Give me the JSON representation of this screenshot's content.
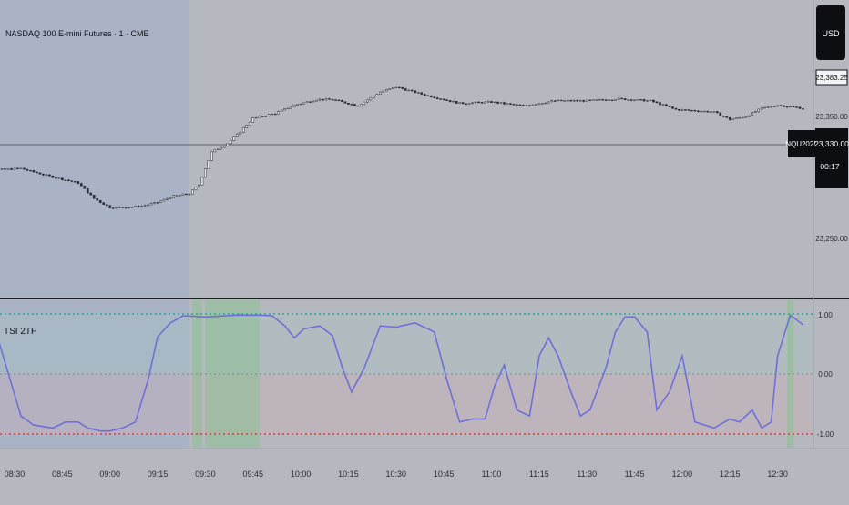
{
  "symbol_title": "NASDAQ 100 E-mini Futures · 1 · CME",
  "currency_label": "USD",
  "colors": {
    "background": "#b5b8bf",
    "session_shade": "#a9b2c6",
    "candle": "#2a2d35",
    "tsi_line": "#6f6fd8",
    "overbought_line": "#26a69a",
    "oversold_line": "#e53935",
    "zero_line": "#8a8f99",
    "signal_zone": "#8fbf96",
    "label_bg": "#0d0e12"
  },
  "price_pane": {
    "axis_ticks": [
      "23,350.00",
      "23,250.00"
    ],
    "current_price_label": "23,383.25",
    "contract_label": "NQU2025",
    "last_price_label": "23,330.00",
    "countdown_label": "00:17"
  },
  "indicator_pane": {
    "title": "TSI 2TF",
    "axis_ticks": [
      "1.00",
      "0.00",
      "-1.00"
    ]
  },
  "chart_data": [
    {
      "type": "candlestick",
      "title": "NASDAQ 100 E-mini Futures · 1 · CME",
      "ylim": [
        23200,
        23440
      ],
      "x_ticks": [
        "08:30",
        "08:45",
        "09:00",
        "09:15",
        "09:30",
        "09:45",
        "10:00",
        "10:15",
        "10:30",
        "10:45",
        "11:00",
        "11:15",
        "11:30",
        "11:45",
        "12:00",
        "12:15",
        "12:30"
      ],
      "y_ticks": [
        23250,
        23350
      ],
      "horizontal_level": 23330,
      "last_price": 23383.25,
      "close_path": {
        "times": [
          "08:15",
          "08:25",
          "08:32",
          "08:40",
          "08:50",
          "08:55",
          "09:00",
          "09:05",
          "09:10",
          "09:15",
          "09:20",
          "09:25",
          "09:28",
          "09:32",
          "09:37",
          "09:40",
          "09:45",
          "09:52",
          "09:58",
          "10:05",
          "10:10",
          "10:18",
          "10:25",
          "10:30",
          "10:40",
          "10:50",
          "11:00",
          "11:10",
          "11:20",
          "11:30",
          "11:40",
          "11:50",
          "11:58",
          "12:05",
          "12:10",
          "12:15",
          "12:20",
          "12:25",
          "12:30",
          "12:38"
        ],
        "values": [
          23290,
          23290,
          23292,
          23281,
          23269,
          23244,
          23230,
          23230,
          23232,
          23238,
          23248,
          23252,
          23266,
          23318,
          23332,
          23346,
          23372,
          23380,
          23393,
          23402,
          23402,
          23392,
          23414,
          23422,
          23408,
          23396,
          23398,
          23392,
          23400,
          23400,
          23403,
          23400,
          23386,
          23384,
          23382,
          23370,
          23375,
          23388,
          23393,
          23388
        ]
      },
      "shaded_session": [
        "08:15",
        "09:25"
      ]
    },
    {
      "type": "line",
      "title": "TSI 2TF",
      "ylim": [
        -1.05,
        1.05
      ],
      "y_ticks": [
        -1.0,
        0.0,
        1.0
      ],
      "reference_levels": [
        1.0,
        0.0,
        -1.0
      ],
      "series": [
        {
          "values": {
            "times": [
              "08:15",
              "08:20",
              "08:25",
              "08:32",
              "08:36",
              "08:42",
              "08:46",
              "08:50",
              "08:53",
              "08:57",
              "09:00",
              "09:04",
              "09:08",
              "09:12",
              "09:15",
              "09:19",
              "09:23",
              "09:26",
              "09:30",
              "09:40",
              "09:47",
              "09:51",
              "09:55",
              "09:58",
              "10:01",
              "10:06",
              "10:10",
              "10:13",
              "10:16",
              "10:20",
              "10:25",
              "10:30",
              "10:36",
              "10:42",
              "10:46",
              "10:50",
              "10:54",
              "10:58",
              "11:01",
              "11:04",
              "11:08",
              "11:12",
              "11:15",
              "11:18",
              "11:21",
              "11:25",
              "11:28",
              "11:31",
              "11:36",
              "11:39",
              "11:42",
              "11:45",
              "11:49",
              "11:52",
              "11:56",
              "12:00",
              "12:04",
              "12:10",
              "12:15",
              "12:18",
              "12:22",
              "12:25",
              "12:28",
              "12:30",
              "12:34",
              "12:38"
            ],
            "values": [
              0.82,
              0.77,
              0.55,
              -0.7,
              -0.85,
              -0.9,
              -0.8,
              -0.8,
              -0.9,
              -0.95,
              -0.95,
              -0.9,
              -0.8,
              -0.1,
              0.62,
              0.85,
              0.97,
              0.96,
              0.95,
              0.98,
              0.98,
              0.97,
              0.8,
              0.6,
              0.75,
              0.8,
              0.64,
              0.12,
              -0.3,
              0.1,
              0.8,
              0.78,
              0.85,
              0.7,
              -0.1,
              -0.8,
              -0.75,
              -0.75,
              -0.2,
              0.15,
              -0.6,
              -0.7,
              0.3,
              0.6,
              0.3,
              -0.3,
              -0.7,
              -0.6,
              0.1,
              0.7,
              0.95,
              0.95,
              0.7,
              -0.6,
              -0.3,
              0.3,
              -0.8,
              -0.9,
              -0.75,
              -0.8,
              -0.6,
              -0.9,
              -0.8,
              0.3,
              0.98,
              0.82
            ]
          }
        }
      ],
      "signal_zones": [
        [
          "09:26",
          "09:29"
        ],
        [
          "09:30",
          "09:47"
        ],
        [
          "12:33",
          "12:35"
        ]
      ]
    }
  ]
}
